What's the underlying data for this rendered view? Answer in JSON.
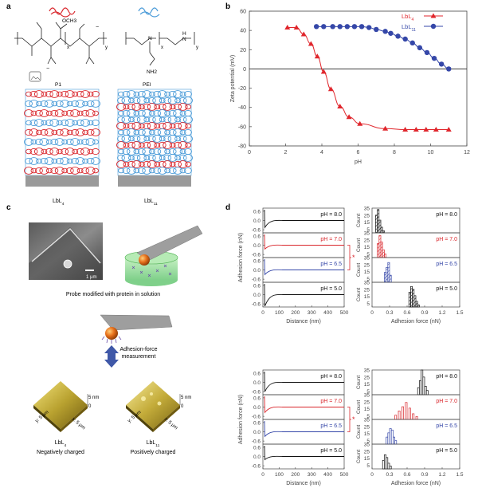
{
  "panel_a": {
    "label": "a",
    "p1_name": "P1",
    "pei_name": "PEI",
    "p1_ester": "OCH3",
    "pei_nh2": "NH2",
    "sub_x": "x",
    "sub_y": "y",
    "sub_z": "z",
    "minus": "−",
    "film_left": "LbL4",
    "film_right": "LbL11",
    "colors": {
      "p1": "#d9262c",
      "pei": "#4a9bd8",
      "substrate": "#9a9a9a"
    }
  },
  "panel_c": {
    "label": "c",
    "scale_bar": "1 μm",
    "probe_caption": "Probe modified with protein in solution",
    "measure_line1": "Adhesion-force",
    "measure_line2": "measurement",
    "afm_z": "5 nm",
    "afm_zero": "0",
    "afm_y": "y: 5 μm",
    "afm_x": "x: 5 μm",
    "left_name": "LbL4",
    "left_charge": "Negatively charged",
    "right_name": "LbL11",
    "right_charge": "Positively charged"
  },
  "panel_d": {
    "label": "d",
    "y_label": "Adhesion force (nN)",
    "x_label": "Distance (nm)",
    "hist_y_label": "Count",
    "hist_x_label": "Adhesion force (nN)",
    "star": "*",
    "colors": {
      "8.0": "#111111",
      "7.0": "#d9262c",
      "6.5": "#3547a8",
      "5.0": "#111111"
    }
  },
  "chart_data": [
    {
      "panel": "b",
      "type": "line",
      "label": "b",
      "xlabel": "pH",
      "ylabel": "Zeta potential (mV)",
      "xlim": [
        0,
        12
      ],
      "ylim": [
        -80,
        60
      ],
      "xticks": [
        0,
        2,
        4,
        6,
        8,
        10,
        12
      ],
      "yticks": [
        -80,
        -60,
        -40,
        -20,
        0,
        20,
        40,
        60
      ],
      "legend_position": "top-right",
      "series": [
        {
          "name": "LbL4",
          "color": "#e0262c",
          "marker": "triangle",
          "x": [
            2.1,
            2.6,
            3.0,
            3.4,
            3.75,
            4.1,
            4.5,
            5.0,
            5.5,
            6.1,
            7.5,
            8.6,
            9.2,
            9.75,
            10.3,
            11.0
          ],
          "y": [
            43,
            43,
            36,
            26,
            13,
            -3,
            -21,
            -39,
            -50,
            -57,
            -62,
            -63,
            -63,
            -63,
            -63,
            -63
          ]
        },
        {
          "name": "LbL11",
          "color": "#3547a8",
          "marker": "circle",
          "x": [
            3.7,
            4.1,
            4.6,
            5.0,
            5.4,
            5.8,
            6.2,
            6.6,
            7.0,
            7.5,
            7.8,
            8.2,
            8.6,
            9.0,
            9.4,
            9.8,
            10.2,
            10.6,
            11.0
          ],
          "y": [
            44,
            44,
            44,
            44,
            44,
            44,
            44,
            43,
            41,
            39,
            37,
            34,
            31,
            27,
            22,
            17,
            11,
            5,
            0
          ]
        }
      ]
    },
    {
      "panel": "d",
      "type": "line",
      "name": "force-distance curves (LbL4 group)",
      "xlim": [
        0,
        500
      ],
      "xticks": [
        0,
        100,
        200,
        300,
        400,
        500
      ],
      "yticks": [
        0.6,
        0.3,
        0.0,
        -0.3,
        -0.6
      ],
      "curves": [
        {
          "ph": "pH = 8.0",
          "key": "8.0",
          "pull_off": -0.45
        },
        {
          "ph": "pH = 7.0",
          "key": "7.0",
          "pull_off": -0.25
        },
        {
          "ph": "pH = 6.5",
          "key": "6.5",
          "pull_off": -0.3
        },
        {
          "ph": "pH = 5.0",
          "key": "5.0",
          "pull_off": -0.75
        }
      ]
    },
    {
      "panel": "d",
      "type": "bar",
      "name": "adhesion histograms (LbL4 group)",
      "xlim": [
        0,
        1.5
      ],
      "xticks": [
        0,
        0.3,
        0.6,
        0.9,
        1.2,
        1.5
      ],
      "ylim": [
        0,
        35
      ],
      "yticks": [
        35,
        30,
        25,
        20,
        15,
        10,
        5,
        0
      ],
      "bin_width": 0.03,
      "histograms": [
        {
          "ph": "pH = 8.0",
          "key": "8.0",
          "style": "hatched",
          "bins": [
            [
              0.06,
              25
            ],
            [
              0.09,
              33
            ],
            [
              0.12,
              18
            ],
            [
              0.15,
              8
            ],
            [
              0.18,
              3
            ]
          ]
        },
        {
          "ph": "pH = 7.0",
          "key": "7.0",
          "style": "hatched",
          "bins": [
            [
              0.09,
              20
            ],
            [
              0.12,
              31
            ],
            [
              0.15,
              22
            ],
            [
              0.18,
              11
            ],
            [
              0.21,
              5
            ]
          ]
        },
        {
          "ph": "pH = 6.5",
          "key": "6.5",
          "style": "hatched",
          "bins": [
            [
              0.21,
              14
            ],
            [
              0.24,
              21
            ],
            [
              0.27,
              28
            ],
            [
              0.3,
              10
            ]
          ]
        },
        {
          "ph": "pH = 5.0",
          "key": "5.0",
          "style": "hatched",
          "bins": [
            [
              0.63,
              21
            ],
            [
              0.66,
              29
            ],
            [
              0.69,
              25
            ],
            [
              0.72,
              16
            ],
            [
              0.75,
              8
            ],
            [
              0.78,
              3
            ]
          ]
        }
      ]
    },
    {
      "panel": "d",
      "type": "line",
      "name": "force-distance curves (LbL11 group)",
      "xlim": [
        0,
        500
      ],
      "xticks": [
        0,
        100,
        200,
        300,
        400,
        500
      ],
      "yticks": [
        0.6,
        0.3,
        0.0,
        -0.3,
        -0.6
      ],
      "curves": [
        {
          "ph": "pH = 8.0",
          "key": "8.0",
          "pull_off": -0.6
        },
        {
          "ph": "pH = 7.0",
          "key": "7.0",
          "pull_off": -0.35
        },
        {
          "ph": "pH = 6.5",
          "key": "6.5",
          "pull_off": -0.3
        },
        {
          "ph": "pH = 5.0",
          "key": "5.0",
          "pull_off": -0.2
        }
      ]
    },
    {
      "panel": "d",
      "type": "bar",
      "name": "adhesion histograms (LbL11 group)",
      "xlim": [
        0,
        1.5
      ],
      "xticks": [
        0,
        0.3,
        0.6,
        0.9,
        1.2,
        1.5
      ],
      "ylim": [
        0,
        35
      ],
      "yticks": [
        35,
        30,
        25,
        20,
        15,
        10,
        5,
        0
      ],
      "bin_width": 0.03,
      "histograms": [
        {
          "ph": "pH = 8.0",
          "key": "8.0",
          "style": "open",
          "bins": [
            [
              0.78,
              10
            ],
            [
              0.81,
              20
            ],
            [
              0.84,
              35
            ],
            [
              0.87,
              25
            ],
            [
              0.9,
              12
            ],
            [
              0.93,
              6
            ]
          ]
        },
        {
          "ph": "pH = 7.0",
          "key": "7.0",
          "style": "open",
          "bins": [
            [
              0.39,
              6
            ],
            [
              0.45,
              12
            ],
            [
              0.51,
              18
            ],
            [
              0.57,
              24
            ],
            [
              0.63,
              16
            ],
            [
              0.69,
              8
            ],
            [
              0.75,
              4
            ]
          ]
        },
        {
          "ph": "pH = 6.5",
          "key": "6.5",
          "style": "open",
          "bins": [
            [
              0.24,
              10
            ],
            [
              0.27,
              16
            ],
            [
              0.3,
              22
            ],
            [
              0.33,
              20
            ],
            [
              0.36,
              10
            ],
            [
              0.39,
              5
            ]
          ]
        },
        {
          "ph": "pH = 5.0",
          "key": "5.0",
          "style": "open",
          "bins": [
            [
              0.18,
              12
            ],
            [
              0.21,
              20
            ],
            [
              0.24,
              16
            ],
            [
              0.27,
              8
            ],
            [
              0.3,
              4
            ]
          ]
        }
      ]
    }
  ]
}
